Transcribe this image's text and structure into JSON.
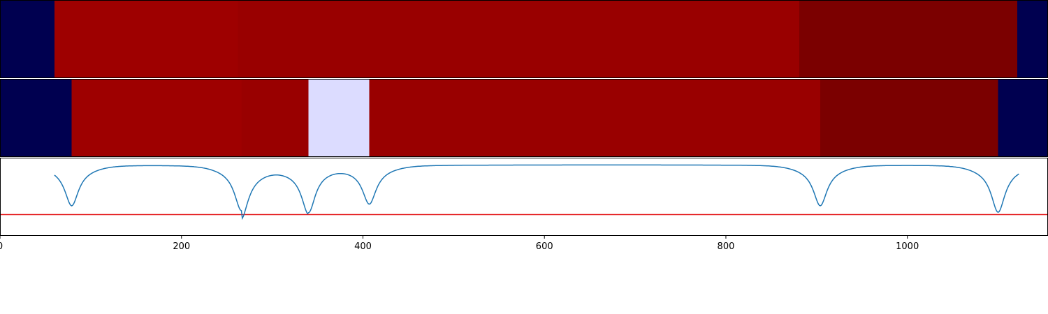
{
  "chart_data": [
    {
      "type": "heatmap",
      "title": "",
      "row": "top",
      "segments": [
        {
          "x0": 0,
          "x1": 60,
          "color": "#000050"
        },
        {
          "x0": 60,
          "x1": 262,
          "color": "#9e0000"
        },
        {
          "x0": 262,
          "x1": 881,
          "color": "#990000"
        },
        {
          "x0": 881,
          "x1": 1121,
          "color": "#7b0000"
        },
        {
          "x0": 1121,
          "x1": 1155,
          "color": "#000050"
        }
      ]
    },
    {
      "type": "heatmap",
      "title": "",
      "row": "middle",
      "segments": [
        {
          "x0": 0,
          "x1": 79,
          "color": "#000050"
        },
        {
          "x0": 79,
          "x1": 266,
          "color": "#9e0000"
        },
        {
          "x0": 266,
          "x1": 340,
          "color": "#990000"
        },
        {
          "x0": 340,
          "x1": 407,
          "color": "#dcdcff"
        },
        {
          "x0": 407,
          "x1": 904,
          "color": "#990000"
        },
        {
          "x0": 904,
          "x1": 1100,
          "color": "#7b0000"
        },
        {
          "x0": 1100,
          "x1": 1155,
          "color": "#000050"
        }
      ]
    },
    {
      "type": "line",
      "title": "",
      "xlabel": "",
      "ylabel": "",
      "xlim": [
        0,
        1155
      ],
      "ylim": [
        -1,
        0.1
      ],
      "xticks": [
        "0",
        "200",
        "400",
        "600",
        "800",
        "1000"
      ],
      "xtick_values": [
        0,
        200,
        400,
        600,
        800,
        1000
      ],
      "threshold": -0.7,
      "threshold_color": "#e41a1c",
      "series_color": "#1f77b4",
      "dips": [
        {
          "center": 79,
          "depth": -0.5
        },
        {
          "center": 266,
          "depth": -0.55,
          "tail_right": true
        },
        {
          "center": 340,
          "depth": -0.57
        },
        {
          "center": 407,
          "depth": -0.47
        },
        {
          "center": 904,
          "depth": -0.5
        },
        {
          "center": 1100,
          "depth": -0.58
        }
      ]
    }
  ]
}
